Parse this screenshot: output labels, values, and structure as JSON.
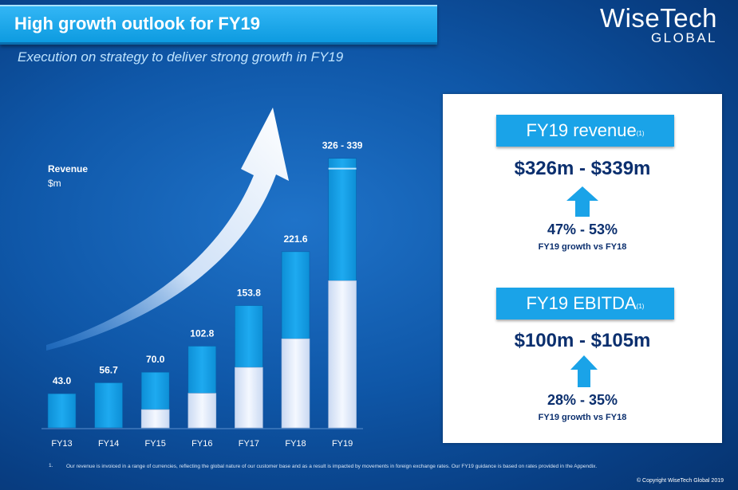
{
  "header": {
    "title": "High growth outlook for FY19",
    "subtitle": "Execution on strategy to deliver strong growth in FY19"
  },
  "logo": {
    "main": "WiseTech",
    "sub": "GLOBAL"
  },
  "colors": {
    "accent": "#1aa3e8",
    "bar_top": "#1aa3e8",
    "bar_bottom": "#e6eefc",
    "navy_text": "#0b2f6e"
  },
  "chart_data": {
    "type": "bar",
    "title": "",
    "ylabel": "Revenue",
    "yunit": "$m",
    "categories": [
      "FY13",
      "FY14",
      "FY15",
      "FY16",
      "FY17",
      "FY18",
      "FY19"
    ],
    "values": [
      43.0,
      56.7,
      70.0,
      102.8,
      153.8,
      221.6,
      339
    ],
    "value_labels": [
      "43.0",
      "56.7",
      "70.0",
      "102.8",
      "153.8",
      "221.6",
      "326 - 339"
    ],
    "fy19_range": [
      326,
      339
    ],
    "lower_segment_values": [
      0,
      0,
      23,
      43.5,
      76,
      112,
      185
    ],
    "ylim": [
      0,
      360
    ],
    "grid": false,
    "annotations": [
      "growth arrow"
    ]
  },
  "panel": {
    "revenue": {
      "label": "FY19 revenue",
      "sup": "(1)",
      "range": "$326m - $339m",
      "growth": "47% - 53%",
      "note": "FY19 growth vs FY18"
    },
    "ebitda": {
      "label": "FY19 EBITDA",
      "sup": "(1)",
      "range": "$100m - $105m",
      "growth": "28% - 35%",
      "note": "FY19 growth vs FY18"
    }
  },
  "footnote": {
    "number": "1.",
    "text": "Our revenue is invoiced in a range of currencies, reflecting the global nature of our customer base and as a result is impacted by movements in foreign exchange rates. Our FY19 guidance is based on rates provided in the Appendix."
  },
  "copyright": "© Copyright WiseTech Global 2019"
}
